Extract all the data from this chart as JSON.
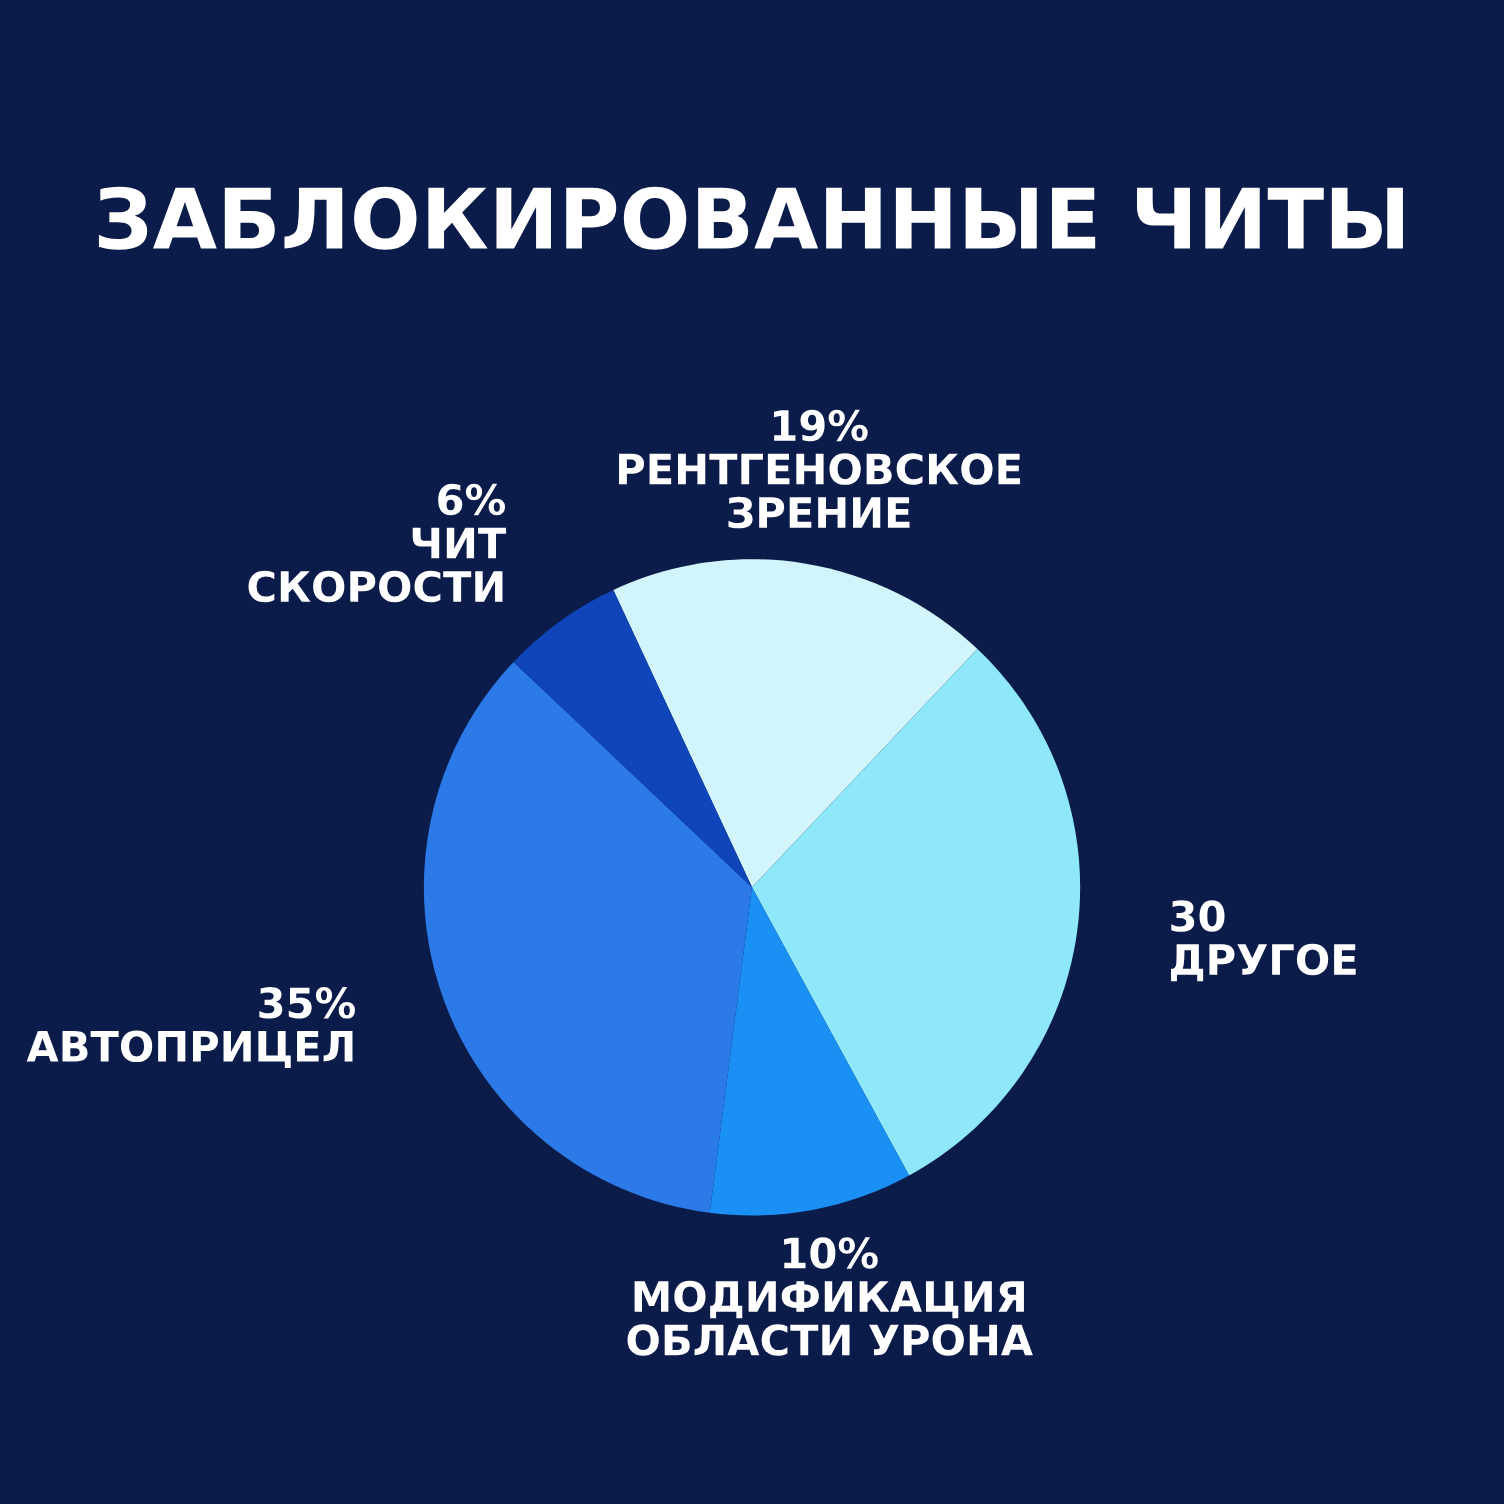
{
  "chart_data": {
    "type": "pie",
    "title": "ЗАБЛОКИРОВАННЫЕ ЧИТЫ",
    "categories": [
      "РЕНТГЕНОВСКОЕ\nЗРЕНИЕ",
      "ДРУГОЕ",
      "МОДИФИКАЦИЯ\nОБЛАСТИ УРОНА",
      "АВТОПРИЦЕЛ",
      "ЧИТ\nСКОРОСТИ"
    ],
    "values": [
      19,
      30,
      10,
      35,
      6
    ],
    "value_labels": [
      "19%",
      "30",
      "10%",
      "35%",
      "6%"
    ],
    "colors": [
      "#d2f5fc",
      "#8ee8fa",
      "#1a90f5",
      "#2b7ae8",
      "#0f45b8"
    ]
  }
}
